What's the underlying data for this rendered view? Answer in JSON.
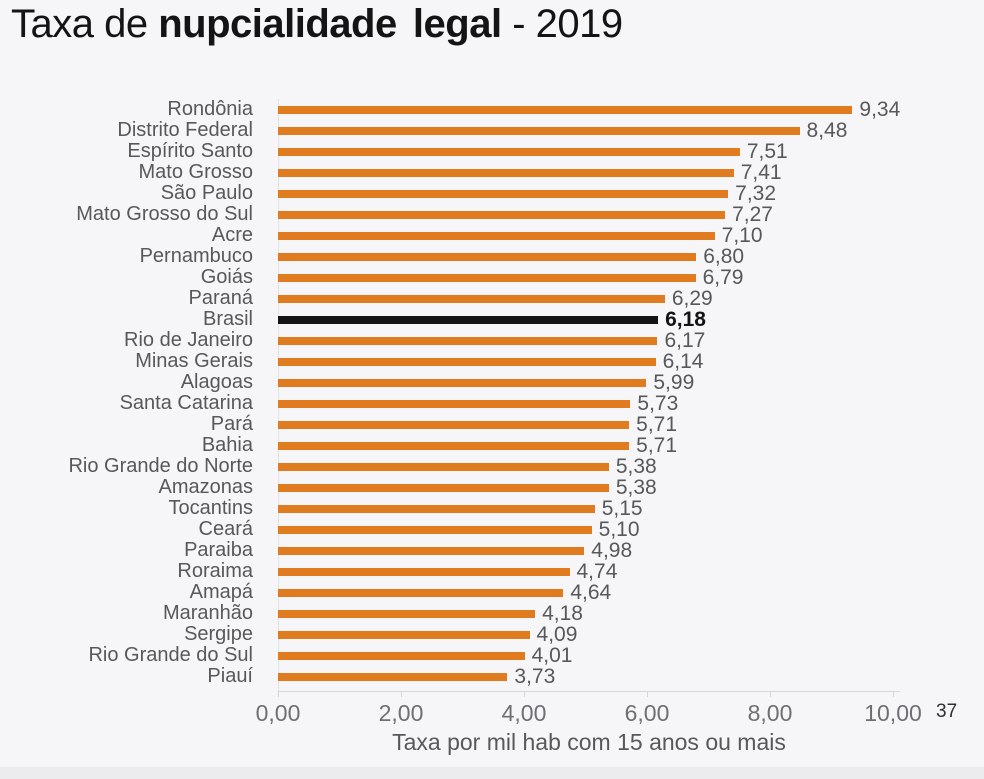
{
  "title": {
    "prefix": "Taxa de ",
    "emphasis": "nupcialidade legal",
    "suffix": " - 2019"
  },
  "page_number": "37",
  "chart_data": {
    "type": "bar",
    "orientation": "horizontal",
    "title": "Taxa de nupcialidade legal - 2019",
    "xlabel": "Taxa por mil hab com 15 anos ou mais",
    "ylabel": "",
    "xlim": [
      0,
      10
    ],
    "grid": false,
    "legend": "none",
    "bar_color": "#e07c1f",
    "highlight_color": "#141414",
    "label_color": "#57585a",
    "x_ticks": [
      {
        "value": 0,
        "label": "0,00"
      },
      {
        "value": 2,
        "label": "2,00"
      },
      {
        "value": 4,
        "label": "4,00"
      },
      {
        "value": 6,
        "label": "6,00"
      },
      {
        "value": 8,
        "label": "8,00"
      },
      {
        "value": 10,
        "label": "10,00"
      }
    ],
    "rows": [
      {
        "label": "Rondônia",
        "value": 9.34,
        "display": "9,34",
        "highlight": false
      },
      {
        "label": "Distrito Federal",
        "value": 8.48,
        "display": "8,48",
        "highlight": false
      },
      {
        "label": "Espírito Santo",
        "value": 7.51,
        "display": "7,51",
        "highlight": false
      },
      {
        "label": "Mato Grosso",
        "value": 7.41,
        "display": "7,41",
        "highlight": false
      },
      {
        "label": "São Paulo",
        "value": 7.32,
        "display": "7,32",
        "highlight": false
      },
      {
        "label": "Mato Grosso do Sul",
        "value": 7.27,
        "display": "7,27",
        "highlight": false
      },
      {
        "label": "Acre",
        "value": 7.1,
        "display": "7,10",
        "highlight": false
      },
      {
        "label": "Pernambuco",
        "value": 6.8,
        "display": "6,80",
        "highlight": false
      },
      {
        "label": "Goiás",
        "value": 6.79,
        "display": "6,79",
        "highlight": false
      },
      {
        "label": "Paraná",
        "value": 6.29,
        "display": "6,29",
        "highlight": false
      },
      {
        "label": "Brasil",
        "value": 6.18,
        "display": "6,18",
        "highlight": true
      },
      {
        "label": "Rio de Janeiro",
        "value": 6.17,
        "display": "6,17",
        "highlight": false
      },
      {
        "label": "Minas Gerais",
        "value": 6.14,
        "display": "6,14",
        "highlight": false
      },
      {
        "label": "Alagoas",
        "value": 5.99,
        "display": "5,99",
        "highlight": false
      },
      {
        "label": "Santa Catarina",
        "value": 5.73,
        "display": "5,73",
        "highlight": false
      },
      {
        "label": "Pará",
        "value": 5.71,
        "display": "5,71",
        "highlight": false
      },
      {
        "label": "Bahia",
        "value": 5.71,
        "display": "5,71",
        "highlight": false
      },
      {
        "label": "Rio Grande do Norte",
        "value": 5.38,
        "display": "5,38",
        "highlight": false
      },
      {
        "label": "Amazonas",
        "value": 5.38,
        "display": "5,38",
        "highlight": false
      },
      {
        "label": "Tocantins",
        "value": 5.15,
        "display": "5,15",
        "highlight": false
      },
      {
        "label": "Ceará",
        "value": 5.1,
        "display": "5,10",
        "highlight": false
      },
      {
        "label": "Paraiba",
        "value": 4.98,
        "display": "4,98",
        "highlight": false
      },
      {
        "label": "Roraima",
        "value": 4.74,
        "display": "4,74",
        "highlight": false
      },
      {
        "label": "Amapá",
        "value": 4.64,
        "display": "4,64",
        "highlight": false
      },
      {
        "label": "Maranhão",
        "value": 4.18,
        "display": "4,18",
        "highlight": false
      },
      {
        "label": "Sergipe",
        "value": 4.09,
        "display": "4,09",
        "highlight": false
      },
      {
        "label": "Rio Grande do Sul",
        "value": 4.01,
        "display": "4,01",
        "highlight": false
      },
      {
        "label": "Piauí",
        "value": 3.73,
        "display": "3,73",
        "highlight": false
      }
    ]
  }
}
